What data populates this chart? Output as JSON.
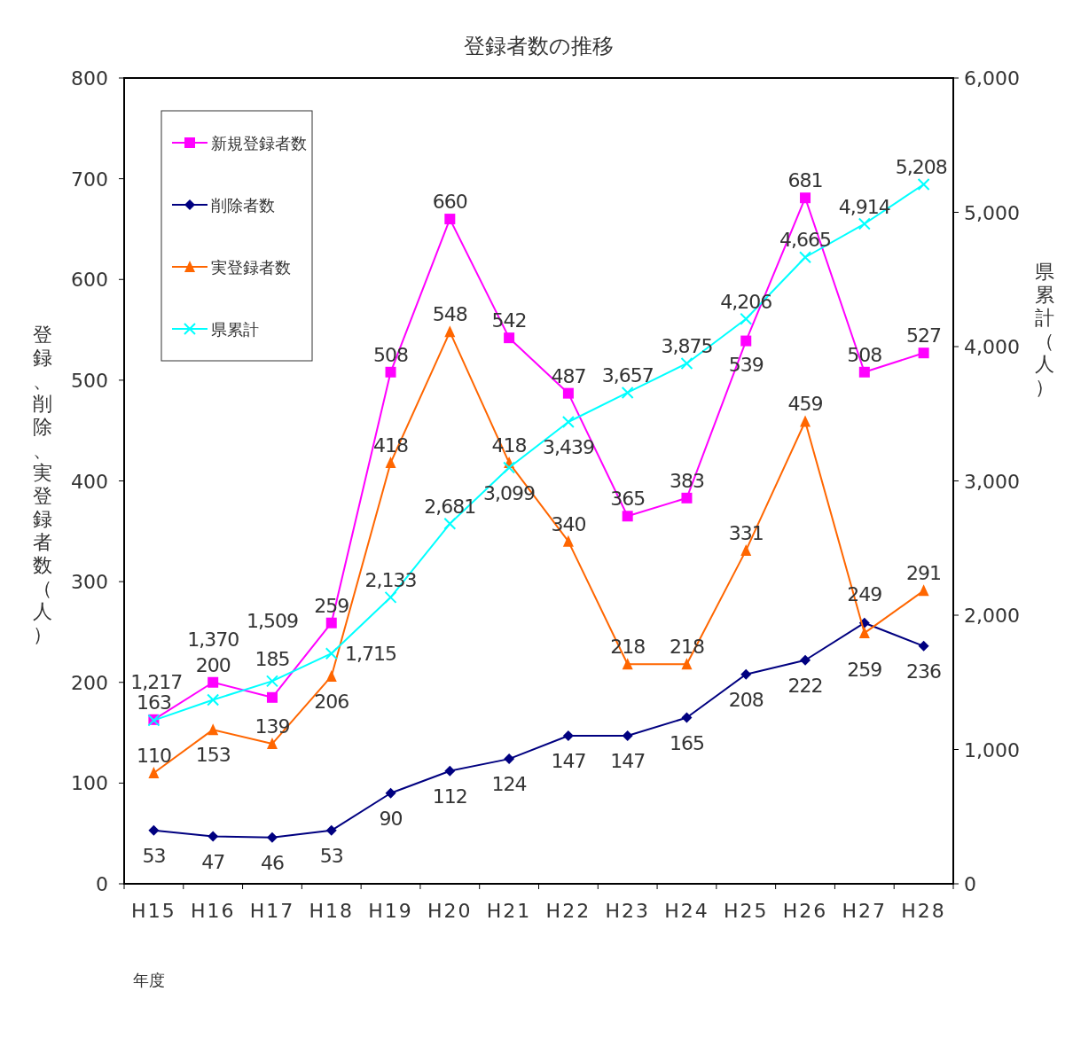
{
  "chart_data": {
    "type": "line",
    "title": "登録者数の推移",
    "xlabel": "年度",
    "ylabel": "登録、削除、実登録者数（人）",
    "y2label": "県累計（人）",
    "categories": [
      "H15",
      "H16",
      "H17",
      "H18",
      "H19",
      "H20",
      "H21",
      "H22",
      "H23",
      "H24",
      "H25",
      "H26",
      "H27",
      "H28"
    ],
    "ylim": [
      0,
      800
    ],
    "yticks": [
      0,
      100,
      200,
      300,
      400,
      500,
      600,
      700,
      800
    ],
    "y2lim": [
      0,
      6000
    ],
    "y2ticks": [
      0,
      {
        "value": 1000,
        "label": "1,000"
      },
      {
        "value": 2000,
        "label": "2,000"
      },
      {
        "value": 3000,
        "label": "3,000"
      },
      {
        "value": 4000,
        "label": "4,000"
      },
      {
        "value": 5000,
        "label": "5,000"
      },
      {
        "value": 6000,
        "label": "6,000"
      }
    ],
    "legend": "top left",
    "grid": false,
    "data_labels": true,
    "series": [
      {
        "name": "新規登録者数",
        "color": "#ff00ff",
        "marker": "square",
        "values": [
          163,
          200,
          185,
          259,
          508,
          660,
          542,
          487,
          365,
          383,
          539,
          681,
          508,
          527
        ]
      },
      {
        "name": "削除者数",
        "color": "#000080",
        "marker": "diamond",
        "values": [
          53,
          47,
          46,
          53,
          90,
          112,
          124,
          147,
          147,
          165,
          208,
          222,
          259,
          236
        ]
      },
      {
        "name": "実登録者数",
        "color": "#ff6600",
        "marker": "triangle",
        "values": [
          110,
          153,
          139,
          206,
          418,
          548,
          418,
          340,
          218,
          218,
          331,
          459,
          249,
          291
        ]
      },
      {
        "name": "県累計",
        "color": "#00ffff",
        "marker": "cross",
        "axis": "y2",
        "values": [
          1217,
          1370,
          1509,
          1715,
          2133,
          2681,
          3099,
          3439,
          3657,
          3875,
          4206,
          4665,
          4914,
          5208
        ],
        "value_labels": [
          "1,217",
          "1,370",
          "1,509",
          "1,715",
          "2,133",
          "2,681",
          "3,099",
          "3,439",
          "3,657",
          "3,875",
          "4,206",
          "4,665",
          "4,914",
          "5,208"
        ]
      }
    ]
  }
}
